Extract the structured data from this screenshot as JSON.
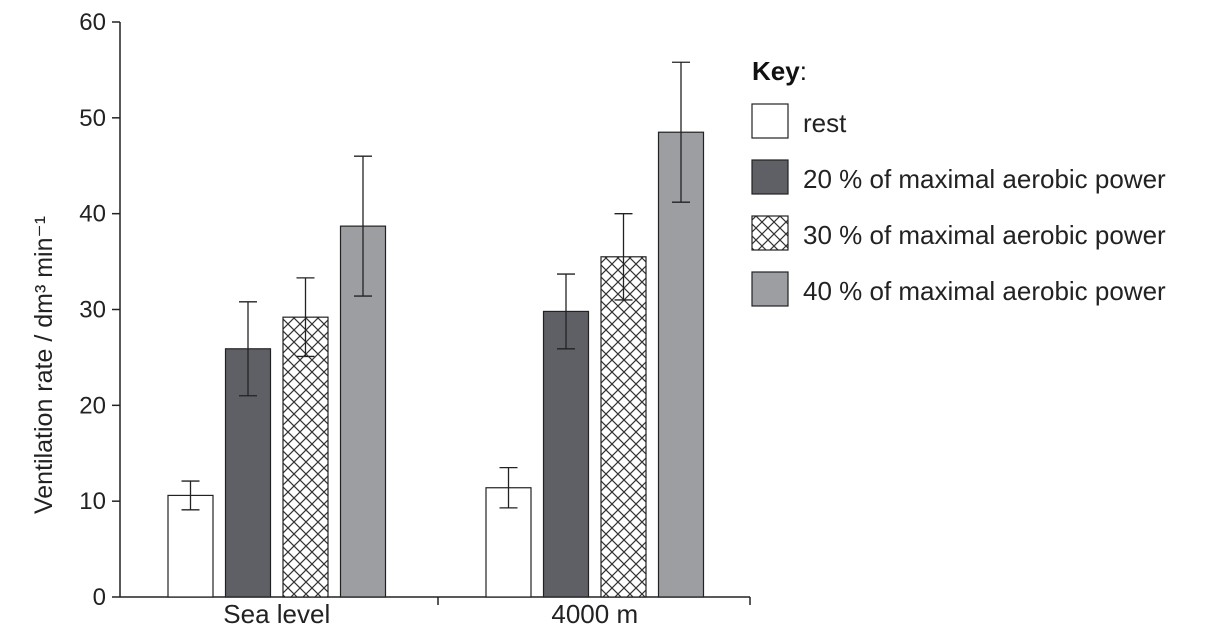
{
  "chart_data": {
    "type": "bar",
    "title": "",
    "xlabel": "",
    "ylabel": "Ventilation rate / dm³ min⁻¹",
    "ylim": [
      0,
      60
    ],
    "yticks": [
      0,
      10,
      20,
      30,
      40,
      50,
      60
    ],
    "grid": false,
    "legend_position": "right",
    "categories": [
      "Sea level",
      "4000 m"
    ],
    "series": [
      {
        "name": "rest",
        "values": [
          10.6,
          11.4
        ],
        "errors": [
          1.5,
          2.1
        ],
        "fill": "#ffffff",
        "pattern": "none"
      },
      {
        "name": "20 % of maximal aerobic power",
        "values": [
          25.9,
          29.8
        ],
        "errors": [
          4.9,
          3.9
        ],
        "fill": "#5f6065",
        "pattern": "none"
      },
      {
        "name": "30 % of maximal aerobic power",
        "values": [
          29.2,
          35.5
        ],
        "errors": [
          4.1,
          4.5
        ],
        "fill": "#ffffff",
        "pattern": "crosshatch"
      },
      {
        "name": "40 % of maximal aerobic power",
        "values": [
          38.7,
          48.5
        ],
        "errors": [
          7.3,
          7.3
        ],
        "fill": "#9d9ea2",
        "pattern": "none"
      }
    ]
  },
  "legend": {
    "title_bold": "Key",
    "title_suffix": ":"
  },
  "colors": {
    "axis": "#222222",
    "error_bar": "#222222",
    "bar_stroke": "#222222"
  }
}
